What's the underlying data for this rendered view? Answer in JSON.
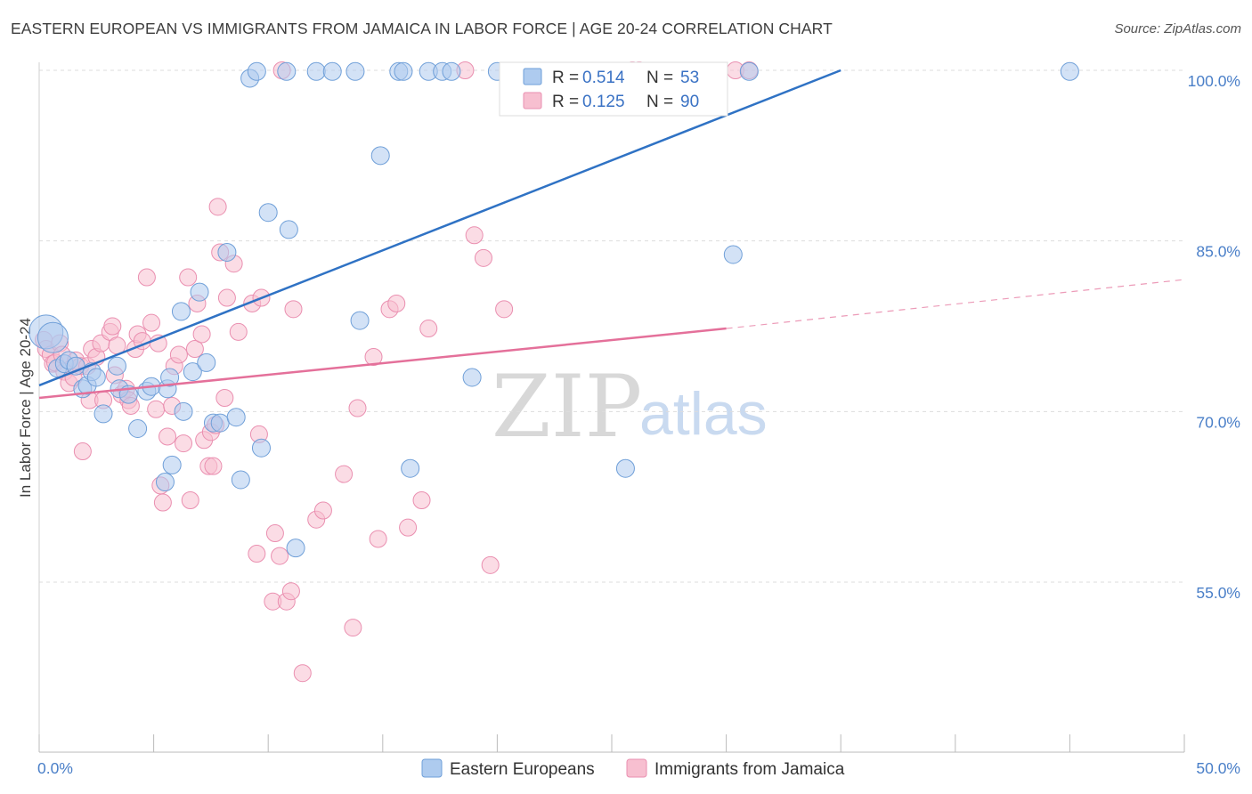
{
  "title": "EASTERN EUROPEAN VS IMMIGRANTS FROM JAMAICA IN LABOR FORCE | AGE 20-24 CORRELATION CHART",
  "source": "Source: ZipAtlas.com",
  "watermark": {
    "part1": "ZIP",
    "part2": "atlas"
  },
  "colors": {
    "blue_fill": "#aecbef",
    "blue_stroke": "#6f9fd8",
    "blue_line": "#2f72c4",
    "pink_fill": "#f7bfd0",
    "pink_stroke": "#ea8fb0",
    "pink_line": "#e4709a",
    "axis_text": "#4a7fc8",
    "grid": "#dddddd"
  },
  "legend": {
    "rows": [
      {
        "r_label": "R =",
        "r_value": "0.514",
        "n_label": "N =",
        "n_value": "53",
        "series": "blue"
      },
      {
        "r_label": "R =",
        "r_value": "0.125",
        "n_label": "N =",
        "n_value": "90",
        "series": "pink"
      }
    ]
  },
  "chart_data": {
    "type": "scatter",
    "title": "EASTERN EUROPEAN VS IMMIGRANTS FROM JAMAICA IN LABOR FORCE | AGE 20-24 CORRELATION CHART",
    "xlabel": "",
    "ylabel": "In Labor Force | Age 20-24",
    "xlim": [
      0,
      50
    ],
    "ylim": [
      40,
      100
    ],
    "x_tick_labels": [
      "0.0%",
      "50.0%"
    ],
    "y_ticks": [
      55,
      70,
      85,
      100
    ],
    "y_tick_labels": [
      "55.0%",
      "70.0%",
      "85.0%",
      "100.0%"
    ],
    "grid": true,
    "legend_position": "top-center",
    "series": [
      {
        "name": "Eastern Europeans",
        "color": "#aecbef",
        "points": [
          [
            0.3,
            77.0
          ],
          [
            0.6,
            76.5
          ],
          [
            0.8,
            73.8
          ],
          [
            1.1,
            74.2
          ],
          [
            1.3,
            74.5
          ],
          [
            1.6,
            74.0
          ],
          [
            1.9,
            72.0
          ],
          [
            2.1,
            72.3
          ],
          [
            2.3,
            73.5
          ],
          [
            2.5,
            73.0
          ],
          [
            2.8,
            69.8
          ],
          [
            3.4,
            74.0
          ],
          [
            3.5,
            72.0
          ],
          [
            3.9,
            71.5
          ],
          [
            4.3,
            68.5
          ],
          [
            4.7,
            71.8
          ],
          [
            4.9,
            72.2
          ],
          [
            5.5,
            63.8
          ],
          [
            5.6,
            72.0
          ],
          [
            5.7,
            73.0
          ],
          [
            5.8,
            65.3
          ],
          [
            6.2,
            78.8
          ],
          [
            6.3,
            70.0
          ],
          [
            6.7,
            73.5
          ],
          [
            7.0,
            80.5
          ],
          [
            7.3,
            74.3
          ],
          [
            7.6,
            69.0
          ],
          [
            7.9,
            69.0
          ],
          [
            8.2,
            84.0
          ],
          [
            8.6,
            69.5
          ],
          [
            8.8,
            64.0
          ],
          [
            9.2,
            99.3
          ],
          [
            9.5,
            99.9
          ],
          [
            9.7,
            66.8
          ],
          [
            10.0,
            87.5
          ],
          [
            10.8,
            99.9
          ],
          [
            10.9,
            86.0
          ],
          [
            11.2,
            58.0
          ],
          [
            12.1,
            99.9
          ],
          [
            12.8,
            99.9
          ],
          [
            13.8,
            99.9
          ],
          [
            14.0,
            78.0
          ],
          [
            14.9,
            92.5
          ],
          [
            15.7,
            99.9
          ],
          [
            15.9,
            99.9
          ],
          [
            16.2,
            65.0
          ],
          [
            17.0,
            99.9
          ],
          [
            17.6,
            99.9
          ],
          [
            18.0,
            99.9
          ],
          [
            18.9,
            73.0
          ],
          [
            20.0,
            99.9
          ],
          [
            25.6,
            65.0
          ],
          [
            30.3,
            83.8
          ],
          [
            31.0,
            99.9
          ],
          [
            45.0,
            99.9
          ]
        ],
        "sizes": [
          38,
          34,
          20,
          20,
          20,
          20,
          20,
          20,
          20,
          20,
          20,
          20,
          20,
          20,
          20,
          20,
          20,
          20,
          20,
          20,
          20,
          20,
          20,
          20,
          20,
          20,
          20,
          20,
          20,
          20,
          20,
          20,
          20,
          20,
          20,
          20,
          20,
          20,
          20,
          20,
          20,
          20,
          20,
          20,
          20,
          20,
          20,
          20,
          20,
          20,
          20,
          20,
          20,
          20,
          20
        ],
        "trend": {
          "x1": 0,
          "y1": 72.3,
          "x2": 35,
          "y2": 100
        }
      },
      {
        "name": "Immigrants from Jamaica",
        "color": "#f7bfd0",
        "points": [
          [
            0.2,
            76.3
          ],
          [
            0.3,
            75.5
          ],
          [
            0.5,
            75.0
          ],
          [
            0.6,
            74.2
          ],
          [
            0.7,
            74.3
          ],
          [
            0.9,
            76.0
          ],
          [
            1.0,
            75.0
          ],
          [
            1.1,
            73.5
          ],
          [
            1.3,
            72.5
          ],
          [
            1.5,
            73.0
          ],
          [
            1.6,
            74.5
          ],
          [
            1.8,
            74.0
          ],
          [
            1.9,
            66.5
          ],
          [
            2.1,
            74.0
          ],
          [
            2.2,
            71.0
          ],
          [
            2.3,
            75.5
          ],
          [
            2.5,
            74.8
          ],
          [
            2.7,
            76.0
          ],
          [
            2.8,
            71.0
          ],
          [
            3.1,
            77.0
          ],
          [
            3.2,
            77.5
          ],
          [
            3.3,
            73.2
          ],
          [
            3.4,
            75.8
          ],
          [
            3.6,
            71.5
          ],
          [
            3.8,
            72.0
          ],
          [
            3.9,
            71.0
          ],
          [
            4.0,
            70.5
          ],
          [
            4.2,
            75.5
          ],
          [
            4.3,
            76.8
          ],
          [
            4.5,
            76.2
          ],
          [
            4.7,
            81.8
          ],
          [
            4.9,
            77.8
          ],
          [
            5.1,
            70.2
          ],
          [
            5.2,
            76.0
          ],
          [
            5.3,
            63.5
          ],
          [
            5.4,
            62.0
          ],
          [
            5.6,
            67.8
          ],
          [
            5.8,
            70.5
          ],
          [
            5.9,
            74.0
          ],
          [
            6.1,
            75.0
          ],
          [
            6.3,
            67.2
          ],
          [
            6.5,
            81.8
          ],
          [
            6.6,
            62.2
          ],
          [
            6.8,
            75.5
          ],
          [
            6.9,
            79.5
          ],
          [
            7.1,
            76.8
          ],
          [
            7.2,
            67.5
          ],
          [
            7.4,
            65.2
          ],
          [
            7.5,
            68.2
          ],
          [
            7.6,
            65.2
          ],
          [
            7.7,
            68.8
          ],
          [
            7.8,
            88.0
          ],
          [
            7.9,
            84.0
          ],
          [
            8.1,
            71.2
          ],
          [
            8.2,
            80.0
          ],
          [
            8.5,
            83.0
          ],
          [
            8.7,
            77.0
          ],
          [
            9.3,
            79.5
          ],
          [
            9.5,
            57.5
          ],
          [
            9.6,
            68.0
          ],
          [
            9.7,
            80.0
          ],
          [
            10.2,
            53.3
          ],
          [
            10.3,
            59.3
          ],
          [
            10.5,
            57.3
          ],
          [
            10.6,
            100.0
          ],
          [
            10.8,
            53.3
          ],
          [
            11.0,
            54.2
          ],
          [
            11.1,
            79.0
          ],
          [
            11.5,
            47.0
          ],
          [
            12.1,
            60.5
          ],
          [
            12.4,
            61.3
          ],
          [
            13.3,
            64.5
          ],
          [
            13.7,
            51.0
          ],
          [
            13.9,
            70.3
          ],
          [
            14.6,
            74.8
          ],
          [
            14.8,
            58.8
          ],
          [
            15.3,
            79.0
          ],
          [
            15.6,
            79.5
          ],
          [
            16.1,
            59.8
          ],
          [
            16.7,
            62.2
          ],
          [
            17.0,
            77.3
          ],
          [
            18.6,
            100.0
          ],
          [
            19.0,
            85.5
          ],
          [
            19.4,
            83.5
          ],
          [
            19.7,
            56.5
          ],
          [
            20.3,
            79.0
          ],
          [
            25.9,
            100.0
          ],
          [
            26.2,
            100.0
          ],
          [
            30.4,
            100.0
          ],
          [
            31.0,
            100.0
          ]
        ],
        "trend": {
          "x1": 0,
          "y1": 71.2,
          "x2": 30,
          "y2": 77.3
        },
        "trend_extension": {
          "x1": 30,
          "y1": 77.3,
          "x2": 50,
          "y2": 81.6
        }
      }
    ]
  },
  "bottom_legend": {
    "items": [
      {
        "label": "Eastern Europeans",
        "series": "blue"
      },
      {
        "label": "Immigrants from Jamaica",
        "series": "pink"
      }
    ]
  }
}
